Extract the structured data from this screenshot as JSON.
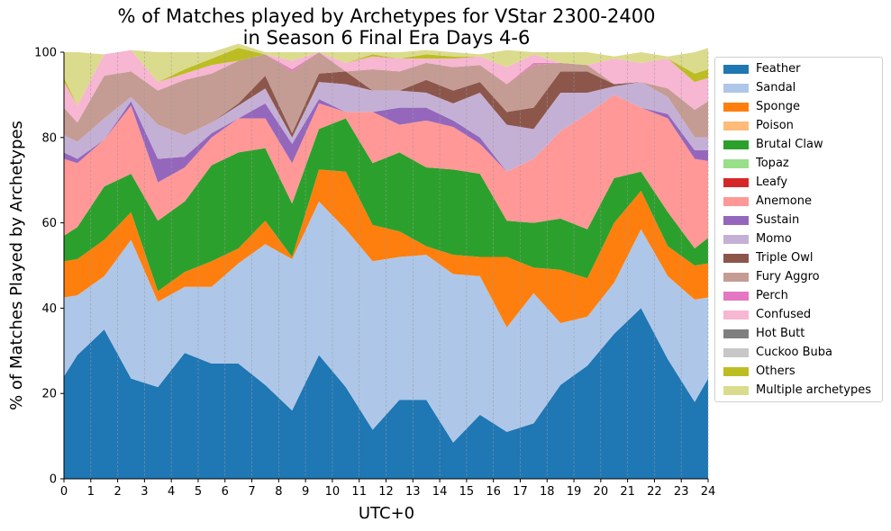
{
  "chart_data": {
    "type": "area",
    "stacked": true,
    "title": "% of Matches played by Archetypes for VStar 2300-2400\nin Season 6 Final Era Days 4-6",
    "xlabel": "UTC+0",
    "ylabel": "% of Matches Played by Archetypes",
    "xlim": [
      0,
      24
    ],
    "ylim": [
      0,
      100
    ],
    "x_ticks": [
      "0",
      "1",
      "2",
      "3",
      "4",
      "5",
      "6",
      "7",
      "8",
      "9",
      "10",
      "11",
      "12",
      "13",
      "14",
      "15",
      "16",
      "17",
      "18",
      "19",
      "20",
      "21",
      "22",
      "23",
      "24"
    ],
    "y_ticks": [
      "0",
      "20",
      "40",
      "60",
      "80",
      "100"
    ],
    "x_grid": true,
    "legend_position": "right, outside plot",
    "x": [
      0,
      0.5,
      1.5,
      2.5,
      3.5,
      4.5,
      5.5,
      6.5,
      7.5,
      8.5,
      9.5,
      10.5,
      11.5,
      12.5,
      13.5,
      14.5,
      15.5,
      16.5,
      17.5,
      18.5,
      19.5,
      20.5,
      21.5,
      22.5,
      23.5,
      24
    ],
    "series": [
      {
        "name": "Feather",
        "color": "#1f77b4",
        "values": [
          24,
          29,
          35,
          23.5,
          21.5,
          29.5,
          27,
          27,
          22,
          16,
          29,
          21.5,
          11.5,
          18.5,
          18.5,
          8.5,
          15,
          11,
          13,
          22,
          26.5,
          34,
          40,
          28,
          18,
          23.5
        ]
      },
      {
        "name": "Sandal",
        "color": "#aec7e8",
        "values": [
          18.5,
          14,
          12.5,
          32.5,
          20,
          15.5,
          18,
          23.5,
          33,
          35.5,
          36,
          37,
          39.5,
          33.5,
          34,
          39.5,
          32.5,
          24.5,
          30.5,
          14.5,
          11.5,
          12,
          18.5,
          19.5,
          24,
          19
        ]
      },
      {
        "name": "Sponge",
        "color": "#ff7f0e",
        "values": [
          8.5,
          8.5,
          8.5,
          6.5,
          2.5,
          3.5,
          6,
          3.5,
          5.5,
          0.5,
          7.5,
          13.5,
          8.5,
          6,
          2,
          4.5,
          4.5,
          16.5,
          6,
          12.5,
          9,
          14,
          9,
          7,
          8,
          8
        ]
      },
      {
        "name": "Poison",
        "color": "#ffbb78",
        "values": [
          0,
          0,
          0,
          0,
          0,
          0,
          0,
          0,
          0,
          0,
          0,
          0,
          0,
          0,
          0,
          0,
          0,
          0,
          0,
          0,
          0,
          0,
          0,
          0,
          0,
          0
        ]
      },
      {
        "name": "Brutal Claw",
        "color": "#2ca02c",
        "values": [
          6,
          7.5,
          12.5,
          9,
          16.5,
          16.5,
          22.5,
          22.5,
          17,
          12.5,
          9.5,
          12.5,
          14.5,
          18.5,
          18.5,
          20,
          19.5,
          8.5,
          10.5,
          12,
          11.5,
          10.5,
          4.5,
          8,
          4,
          6
        ]
      },
      {
        "name": "Topaz",
        "color": "#98df8a",
        "values": [
          0,
          0,
          0,
          0,
          0,
          0,
          0,
          0,
          0,
          0,
          0,
          0,
          0,
          0,
          0,
          0,
          0,
          0,
          0,
          0,
          0,
          0,
          0,
          0,
          0,
          0
        ]
      },
      {
        "name": "Leafy",
        "color": "#d62728",
        "values": [
          0,
          0,
          0,
          0,
          0,
          0,
          0,
          0,
          0,
          0,
          0,
          0,
          0,
          0,
          0,
          0,
          0,
          0,
          0,
          0,
          0,
          0,
          0,
          0,
          0,
          0
        ]
      },
      {
        "name": "Anemone",
        "color": "#ff9896",
        "values": [
          18,
          15,
          11,
          16,
          9,
          8,
          6.5,
          8,
          7,
          9.5,
          6,
          1.5,
          12,
          6.5,
          11,
          10,
          7,
          11.5,
          15,
          20.5,
          27,
          19.5,
          15,
          22,
          21,
          18
        ]
      },
      {
        "name": "Sustain",
        "color": "#9467bd",
        "values": [
          1.5,
          1,
          0,
          1,
          5.5,
          2.5,
          1,
          0,
          3.5,
          4.5,
          1,
          0,
          0,
          4,
          3,
          1.5,
          1.5,
          0,
          0,
          0,
          0,
          0,
          0,
          1,
          2,
          2.5
        ]
      },
      {
        "name": "Momo",
        "color": "#c5b0d5",
        "values": [
          4,
          4,
          5,
          1,
          8,
          5,
          2.5,
          3,
          3.5,
          1.5,
          4,
          6.5,
          5,
          4,
          3.5,
          4,
          10.5,
          11,
          7,
          9,
          5,
          2,
          6,
          4,
          3,
          3
        ]
      },
      {
        "name": "Triple Owl",
        "color": "#8c564b",
        "values": [
          0,
          0,
          0,
          0,
          0,
          0,
          0,
          0.5,
          3,
          1,
          2,
          3,
          0,
          0,
          3,
          3,
          2.5,
          3,
          5,
          5,
          5,
          0.5,
          0,
          0,
          0,
          0
        ]
      },
      {
        "name": "Fury Aggro",
        "color": "#c49c94",
        "values": [
          6.5,
          4.5,
          10,
          6,
          8,
          13,
          11.5,
          10,
          5,
          14.5,
          5,
          0,
          5,
          4.5,
          4,
          5.5,
          4,
          6.5,
          10,
          2,
          1.5,
          0,
          0,
          2,
          6.5,
          8.5
        ]
      },
      {
        "name": "Perch",
        "color": "#e377c2",
        "values": [
          0,
          0,
          0,
          0,
          0,
          0,
          0,
          0,
          0,
          0.5,
          0,
          0,
          0,
          0,
          0,
          0,
          0,
          0,
          0.5,
          0,
          0,
          0,
          0,
          0,
          0,
          0
        ]
      },
      {
        "name": "Confused",
        "color": "#f7b6d2",
        "values": [
          6,
          4,
          5,
          5,
          2,
          1.5,
          2,
          0,
          0,
          2,
          0,
          2,
          3,
          3,
          1,
          2,
          2,
          4,
          2,
          0,
          0,
          6,
          4.5,
          7,
          6.5,
          5.5
        ]
      },
      {
        "name": "Hot Butt",
        "color": "#7f7f7f",
        "values": [
          0,
          0,
          0,
          0,
          0,
          0,
          0,
          0,
          0,
          0,
          0,
          0,
          0,
          0,
          0,
          0,
          0,
          0,
          0,
          0,
          0,
          0,
          0,
          0,
          0,
          0
        ]
      },
      {
        "name": "Cuckoo Buba",
        "color": "#c7c7c7",
        "values": [
          0,
          0,
          0,
          0,
          0,
          0,
          0,
          0,
          0,
          0,
          0,
          0,
          0,
          0,
          0,
          0,
          0,
          0,
          0,
          0,
          0,
          0,
          0,
          0,
          0,
          0
        ]
      },
      {
        "name": "Others",
        "color": "#bcbd22",
        "values": [
          1,
          0,
          0,
          0,
          0,
          1,
          1.5,
          3,
          0,
          0,
          0,
          0,
          0.5,
          0,
          1,
          0.5,
          0,
          0,
          0,
          0,
          0,
          0,
          0,
          0,
          2,
          2
        ]
      },
      {
        "name": "Multiple archetypes",
        "color": "#dbdb8d",
        "values": [
          6,
          12.5,
          0,
          0,
          7,
          4,
          1.5,
          1,
          0.5,
          2,
          0,
          2.5,
          0.5,
          1.5,
          1,
          1,
          0.5,
          4,
          0.5,
          2.5,
          3,
          0.5,
          2.5,
          0.5,
          5,
          5
        ]
      }
    ]
  }
}
